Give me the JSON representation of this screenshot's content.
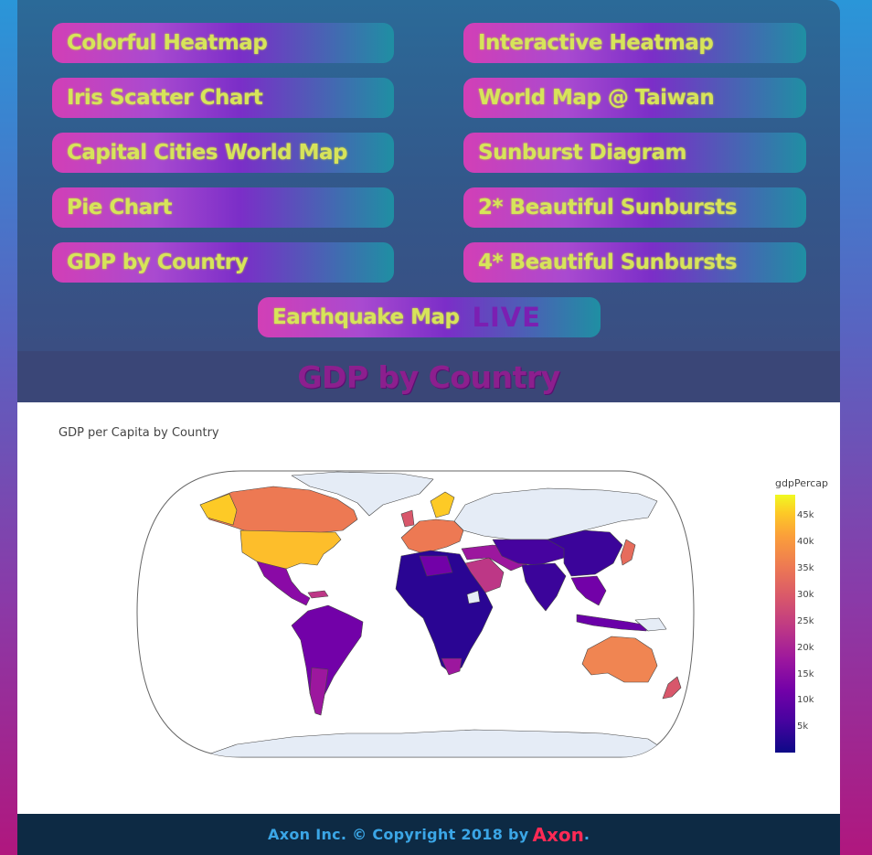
{
  "nav": {
    "buttons": [
      {
        "label": "Colorful Heatmap"
      },
      {
        "label": "Interactive Heatmap"
      },
      {
        "label": "Iris Scatter Chart"
      },
      {
        "label": "World Map @ Taiwan"
      },
      {
        "label": "Capital Cities World Map"
      },
      {
        "label": "Sunburst Diagram"
      },
      {
        "label": "Pie Chart"
      },
      {
        "label": "2* Beautiful Sunbursts"
      },
      {
        "label": "GDP by Country"
      },
      {
        "label": "4* Beautiful Sunbursts"
      },
      {
        "label": "Earthquake Map",
        "badge": "LIVE"
      }
    ]
  },
  "page": {
    "title": "GDP by Country"
  },
  "map": {
    "title": "GDP per Capita by Country",
    "colorbar": {
      "title": "gdpPercap",
      "ticks": [
        "45k",
        "40k",
        "35k",
        "30k",
        "25k",
        "20k",
        "15k",
        "10k",
        "5k"
      ],
      "range": [
        0,
        49000
      ],
      "colors": [
        "#0d0887",
        "#46039f",
        "#7201a8",
        "#9c179e",
        "#bd3786",
        "#d8576b",
        "#ed7953",
        "#fb9f3a",
        "#fdca26",
        "#f0f921"
      ]
    },
    "colors": {
      "no_data": "#e5ecf6",
      "border": "#444444",
      "ocean": "#ffffff"
    },
    "regions": [
      {
        "name": "Canada",
        "gdp": 36000
      },
      {
        "name": "United States",
        "gdp": 43000
      },
      {
        "name": "Mexico",
        "gdp": 11500
      },
      {
        "name": "South America",
        "gdp": 9000
      },
      {
        "name": "Western Europe",
        "gdp": 32000
      },
      {
        "name": "Russia",
        "gdp": null
      },
      {
        "name": "China",
        "gdp": 5000
      },
      {
        "name": "India",
        "gdp": 2500
      },
      {
        "name": "Africa",
        "gdp": 2000
      },
      {
        "name": "Saudi Arabia",
        "gdp": 21000
      },
      {
        "name": "Australia",
        "gdp": 34000
      },
      {
        "name": "Japan",
        "gdp": 31000
      },
      {
        "name": "New Zealand",
        "gdp": 25000
      },
      {
        "name": "Greenland",
        "gdp": null
      },
      {
        "name": "Antarctica",
        "gdp": null
      }
    ]
  },
  "footer": {
    "text": "Axon Inc. © Copyright 2018 by",
    "brand": "Axon",
    "dot": "."
  }
}
